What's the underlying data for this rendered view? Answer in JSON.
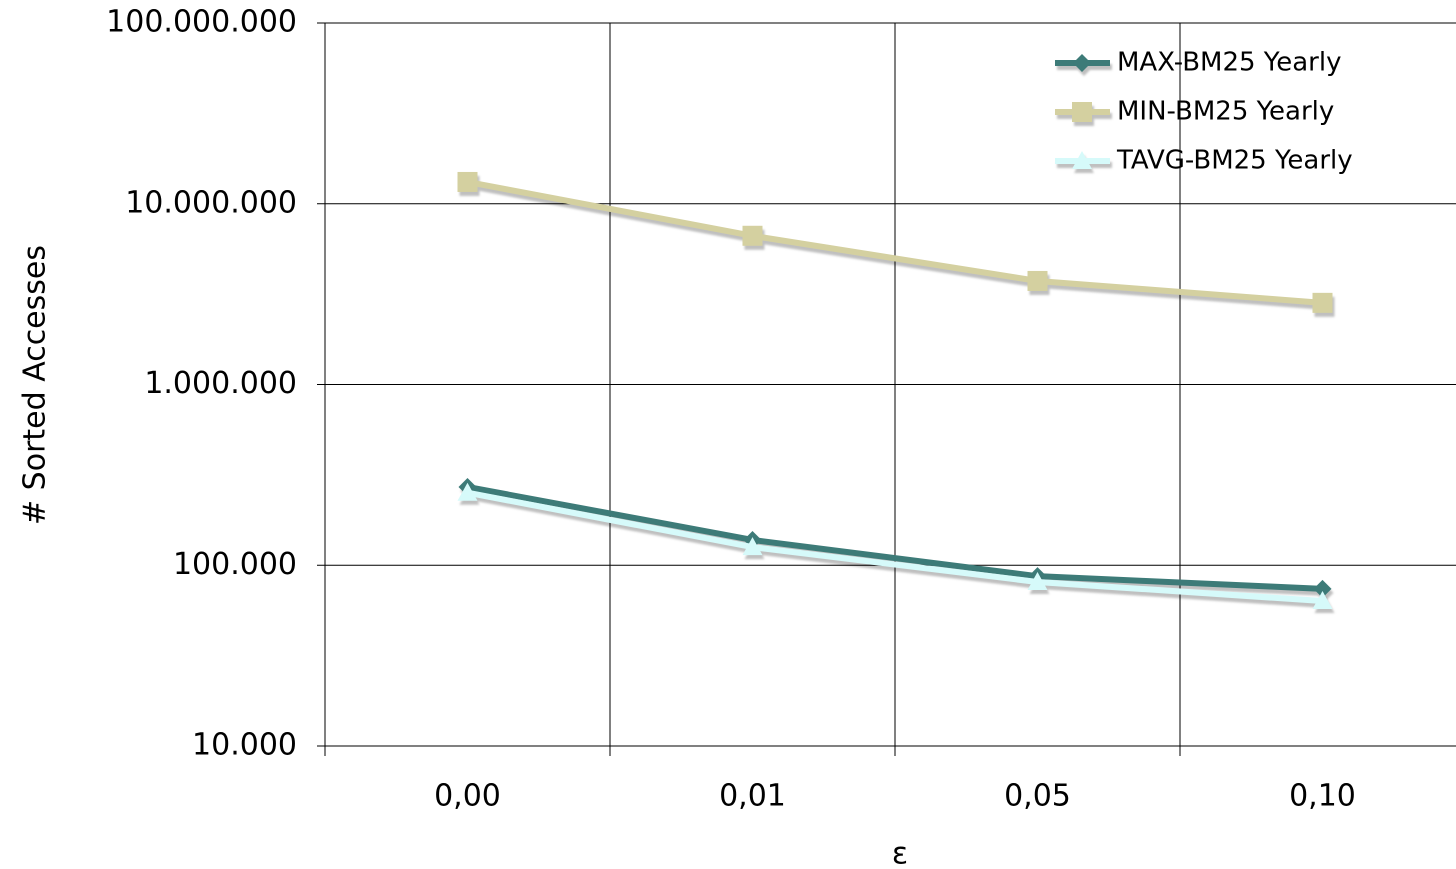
{
  "chart_data": {
    "type": "line",
    "x_label": "ε",
    "y_label": "# Sorted Accesses",
    "categories": [
      "0,00",
      "0,01",
      "0,05",
      "0,10"
    ],
    "series": [
      {
        "name": "MAX-BM25 Yearly",
        "color": "#3d7b78",
        "marker": "diamond",
        "values": [
          271000,
          138000,
          87000,
          74000
        ]
      },
      {
        "name": "MIN-BM25 Yearly",
        "color": "#d4d0a0",
        "marker": "square",
        "values": [
          13200000,
          6650000,
          3740000,
          2830000
        ]
      },
      {
        "name": "TAVG-BM25 Yearly",
        "color": "#d6fafa",
        "marker": "triangle",
        "values": [
          252000,
          126000,
          80800,
          63400
        ]
      }
    ],
    "log_y": true,
    "ylim": [
      10000,
      100000000
    ],
    "yticks": [
      {
        "value": 10000,
        "label": "10.000"
      },
      {
        "value": 100000,
        "label": "100.000"
      },
      {
        "value": 1000000,
        "label": "1.000.000"
      },
      {
        "value": 10000000,
        "label": "10.000.000"
      },
      {
        "value": 100000000,
        "label": "100.000.000"
      }
    ],
    "grid": true,
    "legend": "upper right"
  }
}
